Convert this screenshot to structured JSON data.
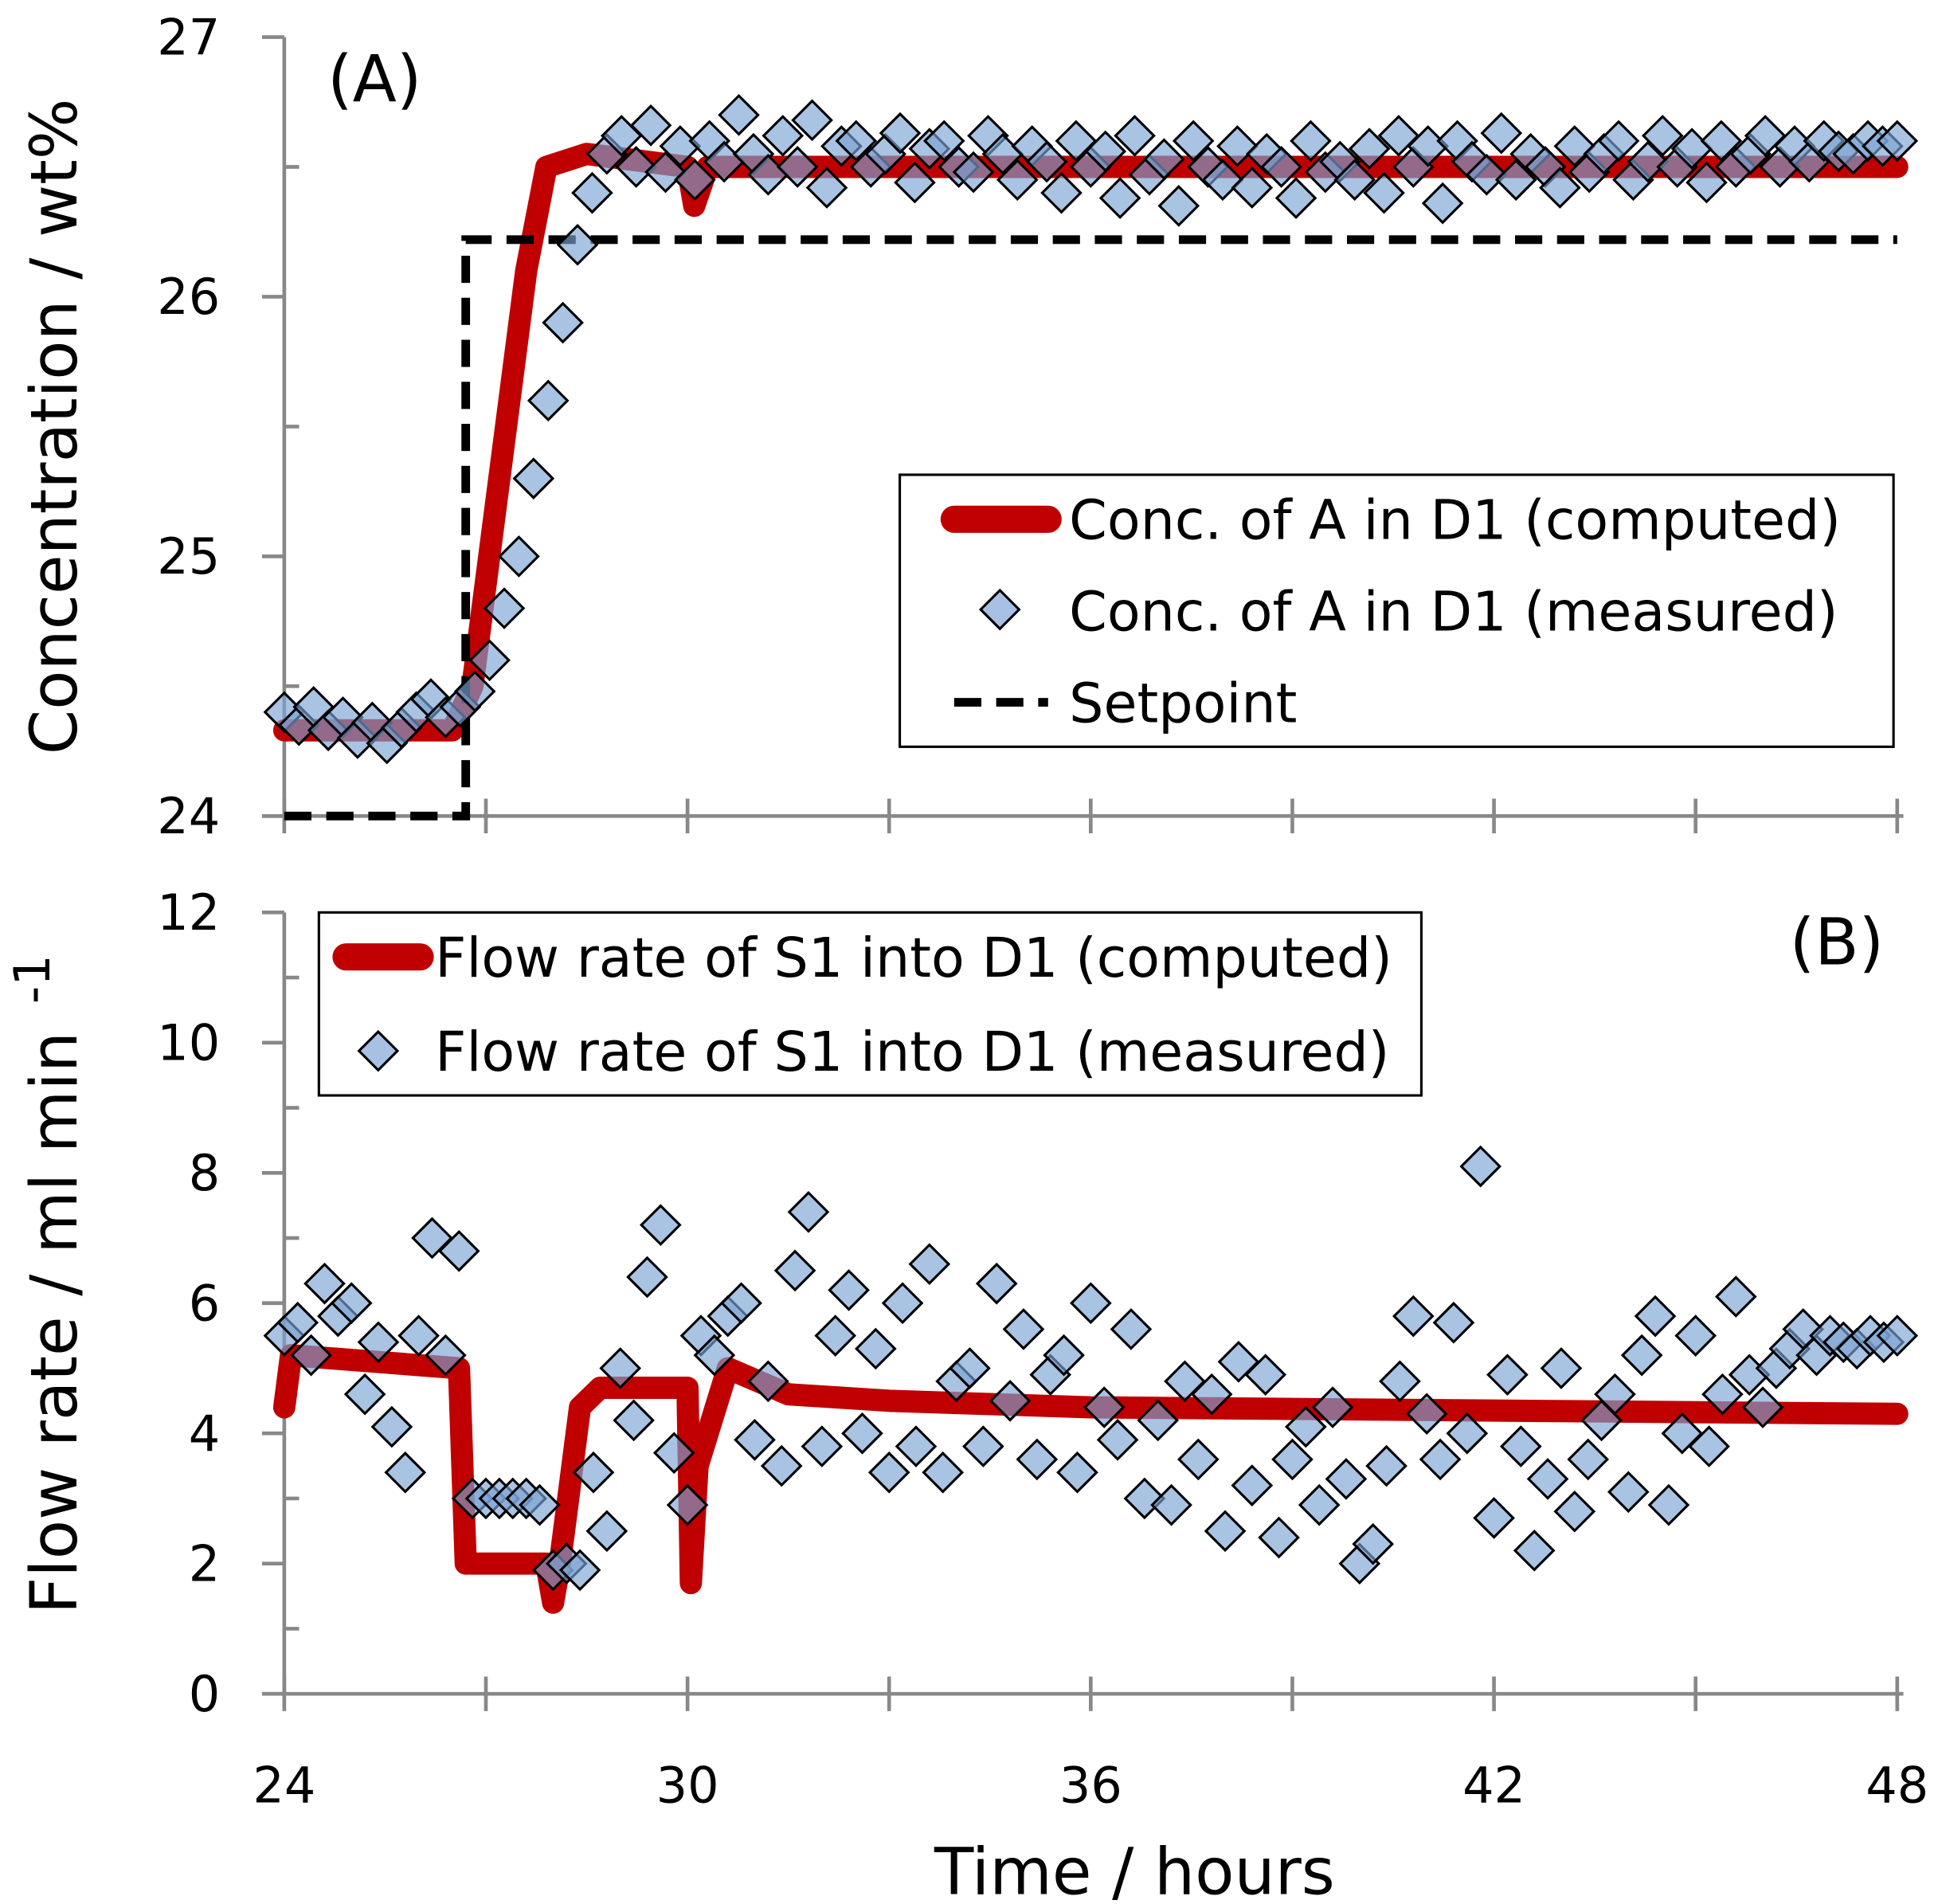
{
  "chart_data": [
    {
      "type": "line+scatter",
      "panel_label": "(A)",
      "ylabel": "Concentration / wt%",
      "xlim": [
        24,
        48
      ],
      "ylim": [
        24,
        27
      ],
      "yticks": [
        "24",
        "25",
        "26",
        "27"
      ],
      "legend": {
        "placement": "center-right",
        "entries": [
          "Conc. of A in D1 (computed)",
          "Conc. of A in D1 (measured)",
          "Setpoint"
        ]
      },
      "computed": {
        "name": "Conc. of A in D1 (computed)",
        "color": "#c00000",
        "points": [
          [
            24,
            24.33
          ],
          [
            26.5,
            24.33
          ],
          [
            26.8,
            24.5
          ],
          [
            27.2,
            25.3
          ],
          [
            27.6,
            26.1
          ],
          [
            27.9,
            26.5
          ],
          [
            28.5,
            26.55
          ],
          [
            30,
            26.5
          ],
          [
            30.1,
            26.35
          ],
          [
            30.3,
            26.5
          ],
          [
            48,
            26.5
          ]
        ]
      },
      "setpoint": {
        "name": "Setpoint",
        "color": "#000000",
        "points": [
          [
            24,
            24
          ],
          [
            26.7,
            24
          ],
          [
            26.7,
            26.22
          ],
          [
            48,
            26.22
          ]
        ]
      },
      "measured": {
        "name": "Conc. of A in D1 (measured)",
        "color": "#7ba3d4",
        "x_range": [
          24,
          48
        ],
        "values": [
          24.4,
          24.35,
          24.42,
          24.33,
          24.38,
          24.3,
          24.36,
          24.28,
          24.34,
          24.4,
          24.45,
          24.38,
          24.42,
          24.48,
          24.6,
          24.8,
          25.0,
          25.3,
          25.6,
          25.9,
          26.2,
          26.4,
          26.55,
          26.62,
          26.5,
          26.66,
          26.48,
          26.58,
          26.45,
          26.6,
          26.52,
          26.7,
          26.55,
          26.47,
          26.62,
          26.5,
          26.68,
          26.42,
          26.58,
          26.6,
          26.5,
          26.55,
          26.63,
          26.44,
          26.57,
          26.6,
          26.5,
          26.48,
          26.62,
          26.55,
          26.45,
          26.58,
          26.52,
          26.4,
          26.6,
          26.5,
          26.56,
          26.38,
          26.62,
          26.47,
          26.53,
          26.35,
          26.6,
          26.5,
          26.45,
          26.58,
          26.42,
          26.55,
          26.5,
          26.38,
          26.6,
          26.48,
          26.52,
          26.45,
          26.57,
          26.4,
          26.62,
          26.5,
          26.58,
          26.36,
          26.6,
          26.52,
          26.47,
          26.63,
          26.45,
          26.55,
          26.5,
          26.42,
          26.58,
          26.48,
          26.55,
          26.6,
          26.45,
          26.52,
          26.62,
          26.5,
          26.57,
          26.44,
          26.6,
          26.5,
          26.55,
          26.62,
          26.5,
          26.58,
          26.52,
          26.6,
          26.56,
          26.55,
          26.6,
          26.58,
          26.6
        ]
      }
    },
    {
      "type": "line+scatter",
      "panel_label": "(B)",
      "ylabel": "Flow rate / ml min",
      "ylabel_superscript": "-1",
      "xlabel": "Time / hours",
      "xlim": [
        24,
        48
      ],
      "ylim": [
        0,
        12
      ],
      "xticks": [
        "24",
        "30",
        "36",
        "42",
        "48"
      ],
      "yticks": [
        "0",
        "2",
        "4",
        "6",
        "8",
        "10",
        "12"
      ],
      "legend": {
        "placement": "top-left",
        "entries": [
          "Flow rate of S1 into D1 (computed)",
          "Flow rate of S1 into D1 (measured)"
        ]
      },
      "computed": {
        "name": "Flow rate of S1 into D1 (computed)",
        "color": "#c00000",
        "points": [
          [
            24,
            4.4
          ],
          [
            24.1,
            5.2
          ],
          [
            26.6,
            5.0
          ],
          [
            26.7,
            2.0
          ],
          [
            27.9,
            2.0
          ],
          [
            28.0,
            1.4
          ],
          [
            28.1,
            2.0
          ],
          [
            28.4,
            4.4
          ],
          [
            28.7,
            4.7
          ],
          [
            30,
            4.7
          ],
          [
            30.05,
            1.7
          ],
          [
            30.15,
            3.5
          ],
          [
            30.6,
            5.0
          ],
          [
            31.5,
            4.6
          ],
          [
            33,
            4.5
          ],
          [
            36,
            4.4
          ],
          [
            48,
            4.3
          ]
        ]
      },
      "measured": {
        "name": "Flow rate of S1 into D1 (measured)",
        "color": "#7ba3d4",
        "x_range": [
          24,
          48
        ],
        "values": [
          5.5,
          5.7,
          5.2,
          6.3,
          5.8,
          6.0,
          4.6,
          5.4,
          4.1,
          3.4,
          5.5,
          7.0,
          5.2,
          6.8,
          3.0,
          3.0,
          3.0,
          3.0,
          3.0,
          2.9,
          1.9,
          2.0,
          1.9,
          3.4,
          2.5,
          5.0,
          4.2,
          6.4,
          7.2,
          3.7,
          2.9,
          5.5,
          5.2,
          5.8,
          6.0,
          3.9,
          4.8,
          3.5,
          6.5,
          7.4,
          3.8,
          5.5,
          6.2,
          4.0,
          5.3,
          3.4,
          6.0,
          3.8,
          6.6,
          3.4,
          4.8,
          5.0,
          3.8,
          6.3,
          4.5,
          5.6,
          3.6,
          4.9,
          5.2,
          3.4,
          6.0,
          4.4,
          3.9,
          5.6,
          3.0,
          4.2,
          2.9,
          4.8,
          3.6,
          4.6,
          2.5,
          5.1,
          3.2,
          4.9,
          2.4,
          3.6,
          4.1,
          2.9,
          4.4,
          3.3,
          2.0,
          2.3,
          3.5,
          4.8,
          5.8,
          4.3,
          3.6,
          5.7,
          4.0,
          8.1,
          2.7,
          4.9,
          3.8,
          2.2,
          3.3,
          5.0,
          2.8,
          3.6,
          4.2,
          4.6,
          3.1,
          5.2,
          5.8,
          2.9,
          4.0,
          5.5,
          3.8,
          4.6,
          6.1,
          4.9,
          4.4,
          5.0,
          5.3,
          5.6,
          5.2,
          5.5,
          5.4,
          5.3,
          5.5,
          5.4,
          5.5
        ]
      }
    }
  ]
}
